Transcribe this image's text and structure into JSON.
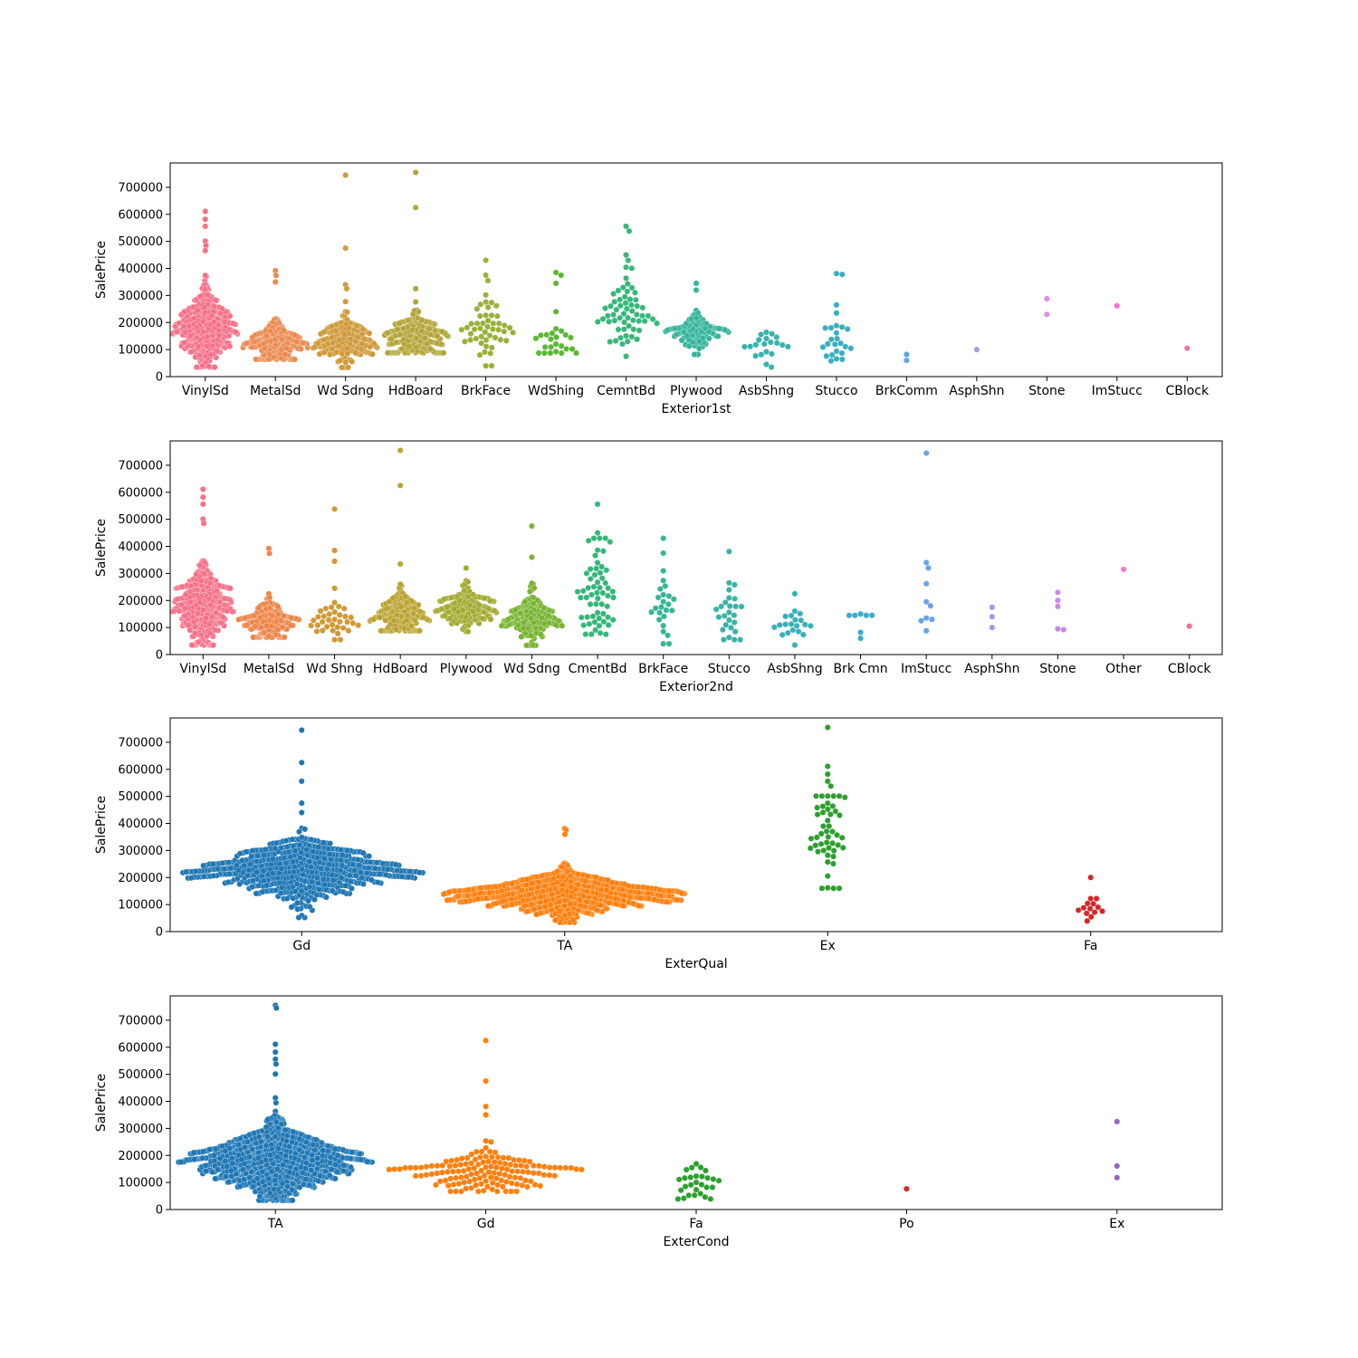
{
  "chart_data": [
    {
      "type": "swarm",
      "xlabel": "Exterior1st",
      "ylabel": "SalePrice",
      "ylim": [
        0,
        790000
      ],
      "yticks": [
        0,
        100000,
        200000,
        300000,
        400000,
        500000,
        600000,
        700000
      ],
      "ytick_labels": [
        "0",
        "100000",
        "200000",
        "300000",
        "400000",
        "500000",
        "600000",
        "700000"
      ],
      "categories": [
        "VinylSd",
        "MetalSd",
        "Wd Sdng",
        "HdBoard",
        "BrkFace",
        "WdShing",
        "CemntBd",
        "Plywood",
        "AsbShng",
        "Stucco",
        "BrkComm",
        "AsphShn",
        "Stone",
        "ImStucc",
        "CBlock"
      ],
      "colors": [
        "#f77189",
        "#ec8a4f",
        "#d09a3a",
        "#b4a53a",
        "#98b239",
        "#5bb834",
        "#36b879",
        "#36b59b",
        "#37b2ad",
        "#38afc1",
        "#5ea8e0",
        "#a89ae9",
        "#de8de5",
        "#f471d0",
        "#f573a9"
      ],
      "groups": [
        {
          "n": 515,
          "min": 35000,
          "max": 611000,
          "center": 180000,
          "spread": 70000,
          "outliers": [
            611000,
            582000,
            556000,
            501000,
            485000,
            466000
          ]
        },
        {
          "n": 220,
          "min": 64000,
          "max": 392000,
          "center": 125000,
          "spread": 38000,
          "outliers": [
            392000,
            374000,
            350000
          ]
        },
        {
          "n": 206,
          "min": 34000,
          "max": 745000,
          "center": 130000,
          "spread": 45000,
          "outliers": [
            745000,
            475000,
            340000,
            325000
          ]
        },
        {
          "n": 222,
          "min": 88000,
          "max": 755000,
          "center": 150000,
          "spread": 40000,
          "outliers": [
            755000,
            625000,
            325000
          ]
        },
        {
          "n": 50,
          "min": 40000,
          "max": 430000,
          "center": 160000,
          "spread": 70000,
          "outliers": [
            430000,
            375000,
            355000
          ]
        },
        {
          "n": 26,
          "min": 87000,
          "max": 385000,
          "center": 120000,
          "spread": 30000,
          "outliers": [
            385000,
            375000,
            345000,
            240000
          ]
        },
        {
          "n": 61,
          "min": 75000,
          "max": 556000,
          "center": 230000,
          "spread": 100000,
          "outliers": [
            556000,
            538000,
            450000,
            430000
          ]
        },
        {
          "n": 108,
          "min": 82000,
          "max": 345000,
          "center": 170000,
          "spread": 35000,
          "outliers": [
            345000,
            320000
          ]
        },
        {
          "n": 20,
          "min": 35000,
          "max": 165000,
          "center": 110000,
          "spread": 30000,
          "outliers": []
        },
        {
          "n": 25,
          "min": 58000,
          "max": 381000,
          "center": 140000,
          "spread": 45000,
          "outliers": [
            381000,
            378000,
            265000,
            235000
          ]
        },
        {
          "n": 2,
          "values": [
            82000,
            60000
          ]
        },
        {
          "n": 1,
          "values": [
            100000
          ]
        },
        {
          "n": 2,
          "values": [
            288000,
            230000
          ]
        },
        {
          "n": 1,
          "values": [
            262000
          ]
        },
        {
          "n": 1,
          "values": [
            105000
          ]
        }
      ]
    },
    {
      "type": "swarm",
      "xlabel": "Exterior2nd",
      "ylabel": "SalePrice",
      "ylim": [
        0,
        790000
      ],
      "yticks": [
        0,
        100000,
        200000,
        300000,
        400000,
        500000,
        600000,
        700000
      ],
      "ytick_labels": [
        "0",
        "100000",
        "200000",
        "300000",
        "400000",
        "500000",
        "600000",
        "700000"
      ],
      "categories": [
        "VinylSd",
        "MetalSd",
        "Wd Shng",
        "HdBoard",
        "Plywood",
        "Wd Sdng",
        "CmentBd",
        "BrkFace",
        "Stucco",
        "AsbShng",
        "Brk Cmn",
        "ImStucc",
        "AsphShn",
        "Stone",
        "Other",
        "CBlock"
      ],
      "colors": [
        "#f77189",
        "#ee8549",
        "#d29833",
        "#bba333",
        "#a3ab32",
        "#79b432",
        "#33b878",
        "#35b694",
        "#36b4a7",
        "#37b1b9",
        "#39acd0",
        "#67a4ea",
        "#9e9bf0",
        "#cc86ef",
        "#ef77d4",
        "#f5708e"
      ],
      "groups": [
        {
          "n": 504,
          "min": 35000,
          "max": 611000,
          "center": 180000,
          "spread": 70000,
          "outliers": [
            611000,
            582000,
            556000,
            501000,
            485000
          ]
        },
        {
          "n": 214,
          "min": 64000,
          "max": 392000,
          "center": 125000,
          "spread": 38000,
          "outliers": [
            392000,
            374000
          ]
        },
        {
          "n": 38,
          "min": 55000,
          "max": 538000,
          "center": 130000,
          "spread": 30000,
          "outliers": [
            538000,
            385000,
            345000,
            245000
          ]
        },
        {
          "n": 207,
          "min": 88000,
          "max": 755000,
          "center": 150000,
          "spread": 40000,
          "outliers": [
            755000,
            625000,
            335000
          ]
        },
        {
          "n": 142,
          "min": 85000,
          "max": 320000,
          "center": 170000,
          "spread": 38000,
          "outliers": [
            320000
          ]
        },
        {
          "n": 197,
          "min": 34000,
          "max": 475000,
          "center": 130000,
          "spread": 45000,
          "outliers": [
            475000,
            360000
          ]
        },
        {
          "n": 60,
          "min": 75000,
          "max": 556000,
          "center": 230000,
          "spread": 100000,
          "outliers": [
            556000,
            450000,
            430000
          ]
        },
        {
          "n": 25,
          "min": 40000,
          "max": 430000,
          "center": 160000,
          "spread": 60000,
          "outliers": [
            430000,
            375000
          ]
        },
        {
          "n": 26,
          "min": 55000,
          "max": 381000,
          "center": 140000,
          "spread": 45000,
          "outliers": [
            381000,
            265000
          ]
        },
        {
          "n": 20,
          "min": 35000,
          "max": 225000,
          "center": 110000,
          "spread": 30000,
          "outliers": [
            225000
          ]
        },
        {
          "n": 7,
          "values": [
            150000,
            145000,
            145000,
            145000,
            145000,
            82000,
            60000
          ]
        },
        {
          "n": 10,
          "values": [
            745000,
            340000,
            320000,
            262000,
            195000,
            180000,
            135000,
            130000,
            125000,
            88000
          ]
        },
        {
          "n": 3,
          "values": [
            175000,
            140000,
            100000
          ]
        },
        {
          "n": 5,
          "values": [
            230000,
            200000,
            178000,
            95000,
            92000
          ]
        },
        {
          "n": 1,
          "values": [
            315000
          ]
        },
        {
          "n": 1,
          "values": [
            105000
          ]
        }
      ]
    },
    {
      "type": "swarm",
      "xlabel": "ExterQual",
      "ylabel": "SalePrice",
      "ylim": [
        0,
        790000
      ],
      "yticks": [
        0,
        100000,
        200000,
        300000,
        400000,
        500000,
        600000,
        700000
      ],
      "ytick_labels": [
        "0",
        "100000",
        "200000",
        "300000",
        "400000",
        "500000",
        "600000",
        "700000"
      ],
      "categories": [
        "Gd",
        "TA",
        "Ex",
        "Fa"
      ],
      "colors": [
        "#1f77b4",
        "#ff7f0e",
        "#2ca02c",
        "#d62728"
      ],
      "groups": [
        {
          "n": 488,
          "min": 52000,
          "max": 745000,
          "center": 225000,
          "spread": 55000,
          "outliers": [
            745000,
            625000,
            556000,
            475000,
            440000
          ]
        },
        {
          "n": 906,
          "min": 34000,
          "max": 381000,
          "center": 140000,
          "spread": 40000,
          "outliers": [
            381000,
            375000,
            360000
          ]
        },
        {
          "n": 52,
          "min": 160000,
          "max": 755000,
          "center": 340000,
          "spread": 90000,
          "outliers": [
            755000,
            611000,
            582000,
            556000,
            538000,
            501000
          ]
        },
        {
          "n": 14,
          "min": 39000,
          "max": 200000,
          "center": 85000,
          "spread": 20000,
          "outliers": [
            200000,
            122000
          ]
        }
      ]
    },
    {
      "type": "swarm",
      "xlabel": "ExterCond",
      "ylabel": "SalePrice",
      "ylim": [
        0,
        790000
      ],
      "yticks": [
        0,
        100000,
        200000,
        300000,
        400000,
        500000,
        600000,
        700000
      ],
      "ytick_labels": [
        "0",
        "100000",
        "200000",
        "300000",
        "400000",
        "500000",
        "600000",
        "700000"
      ],
      "categories": [
        "TA",
        "Gd",
        "Fa",
        "Po",
        "Ex"
      ],
      "colors": [
        "#1f77b4",
        "#ff7f0e",
        "#2ca02c",
        "#d62728",
        "#9467bd"
      ],
      "groups": [
        {
          "n": 1282,
          "min": 34000,
          "max": 755000,
          "center": 180000,
          "spread": 65000,
          "outliers": [
            755000,
            745000,
            611000,
            582000,
            556000,
            538000,
            501000
          ]
        },
        {
          "n": 146,
          "min": 67000,
          "max": 625000,
          "center": 145000,
          "spread": 40000,
          "outliers": [
            625000,
            475000,
            381000,
            350000
          ]
        },
        {
          "n": 28,
          "min": 39000,
          "max": 169000,
          "center": 100000,
          "spread": 35000,
          "outliers": []
        },
        {
          "n": 1,
          "values": [
            76500
          ]
        },
        {
          "n": 3,
          "values": [
            325000,
            161000,
            118000
          ]
        }
      ]
    }
  ]
}
